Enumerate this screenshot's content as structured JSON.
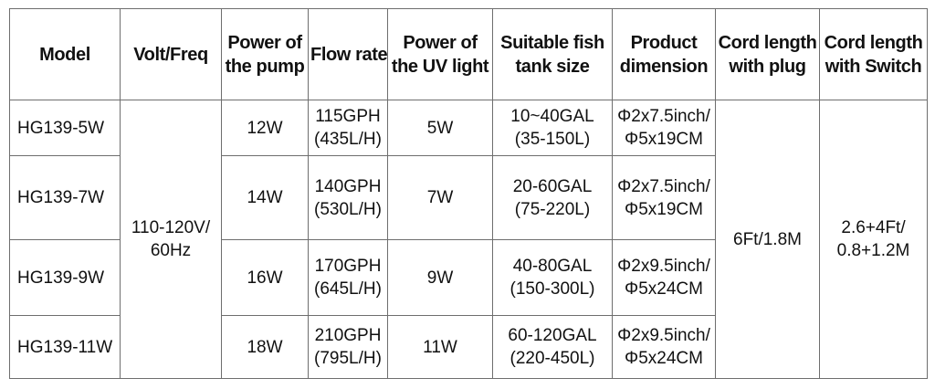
{
  "table": {
    "headers": [
      {
        "l1": "Model",
        "l2": ""
      },
      {
        "l1": "Volt/Freq",
        "l2": ""
      },
      {
        "l1": "Power of",
        "l2": "the pump"
      },
      {
        "l1": "Flow rate",
        "l2": ""
      },
      {
        "l1": "Power of",
        "l2": "the UV light"
      },
      {
        "l1": "Suitable fish",
        "l2": "tank size"
      },
      {
        "l1": "Product",
        "l2": "dimension"
      },
      {
        "l1": "Cord length",
        "l2": "with plug"
      },
      {
        "l1": "Cord length",
        "l2": "with Switch"
      }
    ],
    "shared": {
      "volt_freq": {
        "l1": "110-120V/",
        "l2": "60Hz"
      },
      "cord_plug": "6Ft/1.8M",
      "cord_switch": {
        "l1": "2.6+4Ft/",
        "l2": "0.8+1.2M"
      }
    },
    "rows": [
      {
        "model": "HG139-5W",
        "pump": "12W",
        "flow_l1": "115GPH",
        "flow_l2": "(435L/H)",
        "uv": "5W",
        "tank_l1": "10~40GAL",
        "tank_l2": "(35-150L)",
        "dim_l1": "Φ2x7.5inch/",
        "dim_l2": "Φ5x19CM"
      },
      {
        "model": "HG139-7W",
        "pump": "14W",
        "flow_l1": "140GPH",
        "flow_l2": "(530L/H)",
        "uv": "7W",
        "tank_l1": "20-60GAL",
        "tank_l2": "(75-220L)",
        "dim_l1": "Φ2x7.5inch/",
        "dim_l2": "Φ5x19CM"
      },
      {
        "model": "HG139-9W",
        "pump": "16W",
        "flow_l1": "170GPH",
        "flow_l2": "(645L/H)",
        "uv": "9W",
        "tank_l1": "40-80GAL",
        "tank_l2": "(150-300L)",
        "dim_l1": "Φ2x9.5inch/",
        "dim_l2": "Φ5x24CM"
      },
      {
        "model": "HG139-11W",
        "pump": "18W",
        "flow_l1": "210GPH",
        "flow_l2": "(795L/H)",
        "uv": "11W",
        "tank_l1": "60-120GAL",
        "tank_l2": "(220-450L)",
        "dim_l1": "Φ2x9.5inch/",
        "dim_l2": "Φ5x24CM"
      }
    ]
  }
}
